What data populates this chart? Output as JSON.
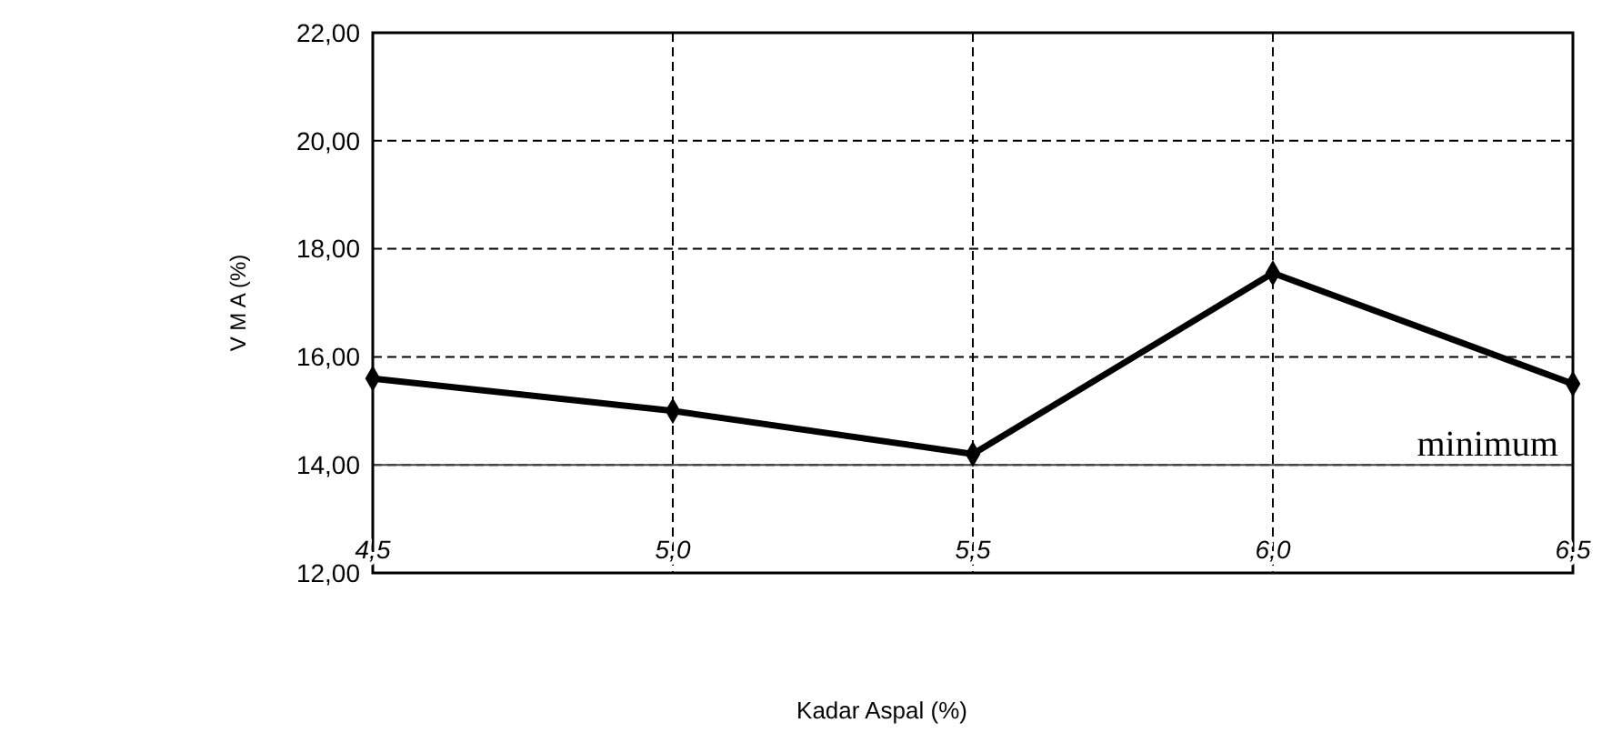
{
  "chart_data": {
    "type": "line",
    "xlabel": "Kadar Aspal (%)",
    "ylabel": "V M A (%)",
    "x": [
      4.5,
      5.0,
      5.5,
      6.0,
      6.5
    ],
    "series": [
      {
        "color": "#000000",
        "values": [
          15.6,
          15.0,
          14.2,
          17.55,
          15.5
        ]
      }
    ],
    "xlim": [
      4.5,
      6.5
    ],
    "ylim": [
      12,
      22
    ],
    "xticks": [
      {
        "value": 4.5,
        "label": "4,5"
      },
      {
        "value": 5.0,
        "label": "5,0"
      },
      {
        "value": 5.5,
        "label": "5,5"
      },
      {
        "value": 6.0,
        "label": "6,0"
      },
      {
        "value": 6.5,
        "label": "6,5"
      }
    ],
    "yticks": [
      {
        "value": 12,
        "label": "12,00"
      },
      {
        "value": 14,
        "label": "14,00"
      },
      {
        "value": 16,
        "label": "16,00"
      },
      {
        "value": 18,
        "label": "18,00"
      },
      {
        "value": 20,
        "label": "20,00"
      },
      {
        "value": 22,
        "label": "22,00"
      }
    ],
    "ref_lines": [
      {
        "axis": "y",
        "value": 14,
        "label": "minimum",
        "color": "#444444",
        "line_style": "solid"
      }
    ],
    "grid": true,
    "marker": "diamond",
    "line_style": "solid"
  }
}
